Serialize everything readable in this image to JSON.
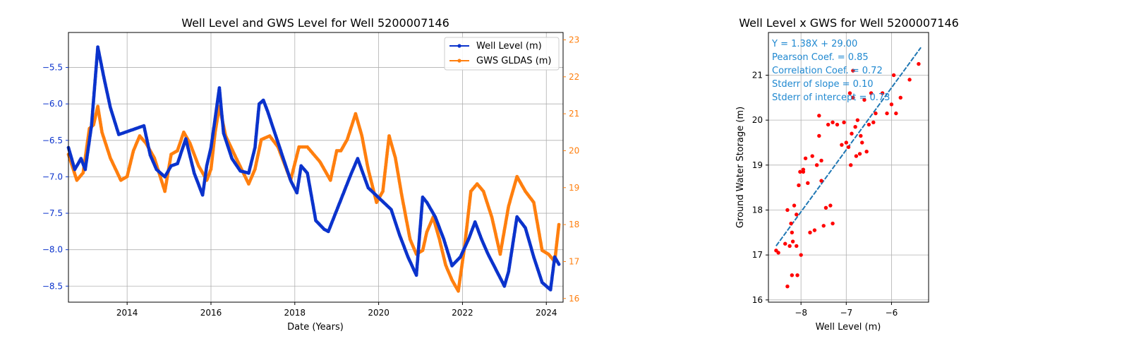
{
  "colors": {
    "well": "#0b33cc",
    "gws": "#ff7f0e",
    "scatter": "#ff0000",
    "fit": "#1f77b4",
    "stats_text": "#1f88d0",
    "grid": "#b0b0b0"
  },
  "chart_data": [
    {
      "type": "line",
      "title": "Well Level and GWS Level for Well 5200007146",
      "xlabel": "Date (Years)",
      "ylabel": "",
      "y2label": "",
      "xlim": [
        2012.6,
        2024.4
      ],
      "ylim": [
        -8.72,
        -5.02
      ],
      "y2lim": [
        15.9,
        23.2
      ],
      "x_ticks": [
        2014,
        2016,
        2018,
        2020,
        2022,
        2024
      ],
      "y_ticks": [
        -8.5,
        -8.0,
        -7.5,
        -7.0,
        -6.5,
        -6.0,
        -5.5
      ],
      "y2_ticks": [
        16,
        17,
        18,
        19,
        20,
        21,
        22,
        23
      ],
      "grid": true,
      "legend": "top-right",
      "series": [
        {
          "name": "Well Level (m)",
          "axis": "left",
          "marker": "dot",
          "x": [
            2012.6,
            2012.75,
            2012.9,
            2013.0,
            2013.15,
            2013.3,
            2013.45,
            2013.6,
            2013.8,
            2014.4,
            2014.55,
            2014.7,
            2014.9,
            2015.05,
            2015.2,
            2015.4,
            2015.6,
            2015.8,
            2015.9,
            2016.0,
            2016.1,
            2016.2,
            2016.3,
            2016.5,
            2016.7,
            2016.9,
            2017.05,
            2017.15,
            2017.25,
            2017.35,
            2017.9,
            2018.05,
            2018.15,
            2018.3,
            2018.5,
            2018.7,
            2018.8,
            2019.35,
            2019.5,
            2019.75,
            2020.3,
            2020.5,
            2020.7,
            2020.9,
            2021.05,
            2021.15,
            2021.35,
            2021.55,
            2021.75,
            2021.95,
            2022.15,
            2022.3,
            2022.45,
            2022.6,
            2023.0,
            2023.1,
            2023.3,
            2023.5,
            2023.7,
            2023.9,
            2024.0,
            2024.1,
            2024.2,
            2024.3
          ],
          "y": [
            -6.6,
            -6.9,
            -6.75,
            -6.9,
            -6.3,
            -5.22,
            -5.65,
            -6.05,
            -6.42,
            -6.3,
            -6.7,
            -6.9,
            -7.0,
            -6.85,
            -6.82,
            -6.48,
            -6.95,
            -7.25,
            -6.85,
            -6.6,
            -6.2,
            -5.78,
            -6.4,
            -6.75,
            -6.92,
            -6.95,
            -6.6,
            -6.0,
            -5.95,
            -6.1,
            -7.05,
            -7.22,
            -6.85,
            -6.95,
            -7.6,
            -7.72,
            -7.75,
            -6.95,
            -6.75,
            -7.15,
            -7.45,
            -7.8,
            -8.1,
            -8.35,
            -7.28,
            -7.35,
            -7.55,
            -7.85,
            -8.22,
            -8.1,
            -7.85,
            -7.62,
            -7.85,
            -8.05,
            -8.5,
            -8.3,
            -7.55,
            -7.7,
            -8.1,
            -8.45,
            -8.5,
            -8.55,
            -8.1,
            -8.2
          ]
        },
        {
          "name": "GWS GLDAS (m)",
          "axis": "right",
          "marker": "dot",
          "x": [
            2012.6,
            2012.8,
            2012.95,
            2013.1,
            2013.2,
            2013.3,
            2013.4,
            2013.6,
            2013.85,
            2014.0,
            2014.15,
            2014.3,
            2014.45,
            2014.65,
            2014.9,
            2015.05,
            2015.2,
            2015.35,
            2015.5,
            2015.7,
            2015.9,
            2016.0,
            2016.1,
            2016.2,
            2016.35,
            2016.6,
            2016.9,
            2017.05,
            2017.2,
            2017.4,
            2017.6,
            2017.9,
            2018.1,
            2018.3,
            2018.6,
            2018.85,
            2019.0,
            2019.1,
            2019.25,
            2019.45,
            2019.6,
            2019.75,
            2019.95,
            2020.1,
            2020.25,
            2020.4,
            2020.55,
            2020.75,
            2020.9,
            2021.05,
            2021.15,
            2021.3,
            2021.45,
            2021.6,
            2021.75,
            2021.9,
            2022.05,
            2022.2,
            2022.35,
            2022.5,
            2022.7,
            2022.9,
            2023.1,
            2023.3,
            2023.5,
            2023.7,
            2023.9,
            2024.05,
            2024.2,
            2024.3
          ],
          "y": [
            19.9,
            19.2,
            19.4,
            20.6,
            20.7,
            21.2,
            20.5,
            19.8,
            19.2,
            19.3,
            20.0,
            20.4,
            20.2,
            19.8,
            18.9,
            19.9,
            20.0,
            20.5,
            20.2,
            19.6,
            19.2,
            19.5,
            20.5,
            21.2,
            20.4,
            19.8,
            19.1,
            19.5,
            20.3,
            20.4,
            20.1,
            19.2,
            20.1,
            20.1,
            19.7,
            19.2,
            20.0,
            20.0,
            20.3,
            21.0,
            20.4,
            19.5,
            18.6,
            18.9,
            20.4,
            19.8,
            18.8,
            17.6,
            17.2,
            17.3,
            17.8,
            18.2,
            17.6,
            16.9,
            16.5,
            16.2,
            17.4,
            18.9,
            19.1,
            18.9,
            18.2,
            17.2,
            18.5,
            19.3,
            18.9,
            18.6,
            17.3,
            17.2,
            17.0,
            18.0
          ]
        }
      ]
    },
    {
      "type": "scatter",
      "title": "Well Level x GWS for Well 5200007146",
      "xlabel": "Well Level (m)",
      "ylabel": "Ground Water Storage (m)",
      "xlim": [
        -8.72,
        -5.18
      ],
      "ylim": [
        15.95,
        21.95
      ],
      "x_ticks": [
        -8,
        -7,
        -6
      ],
      "y_ticks": [
        16,
        17,
        18,
        19,
        20,
        21
      ],
      "grid": true,
      "annotations": [
        "Y = 1.38X + 29.00",
        "Pearson Coef. = 0.85",
        "Correlation Coef. = 0.72",
        "Stderr of slope = 0.10",
        "Stderr of intercept = 0.73"
      ],
      "fit": {
        "slope": 1.38,
        "intercept": 29.0,
        "x_range": [
          -8.55,
          -5.35
        ]
      },
      "points": {
        "x": [
          -8.55,
          -8.5,
          -8.35,
          -8.3,
          -8.25,
          -8.22,
          -8.2,
          -8.18,
          -8.15,
          -8.1,
          -8.08,
          -8.05,
          -8.02,
          -8.0,
          -7.95,
          -7.9,
          -7.85,
          -7.8,
          -7.75,
          -7.7,
          -7.65,
          -7.6,
          -7.55,
          -7.5,
          -7.45,
          -7.4,
          -7.35,
          -7.3,
          -7.2,
          -7.1,
          -7.05,
          -7.0,
          -6.95,
          -6.9,
          -6.88,
          -6.85,
          -6.8,
          -6.78,
          -6.75,
          -6.7,
          -6.68,
          -6.65,
          -6.6,
          -6.55,
          -6.5,
          -6.45,
          -6.4,
          -6.35,
          -6.2,
          -6.1,
          -6.0,
          -5.95,
          -5.9,
          -5.8,
          -5.6,
          -5.4,
          -8.3,
          -8.2,
          -8.1,
          -7.95,
          -7.6,
          -7.55,
          -7.3,
          -6.92,
          -6.85
        ],
        "y": [
          17.1,
          17.05,
          17.25,
          16.3,
          17.2,
          17.7,
          17.5,
          17.3,
          18.1,
          17.2,
          16.55,
          18.55,
          18.85,
          17.0,
          18.9,
          19.15,
          18.6,
          17.5,
          19.2,
          17.55,
          19.0,
          20.1,
          18.65,
          17.65,
          18.05,
          19.9,
          18.1,
          17.7,
          19.9,
          19.45,
          19.95,
          19.5,
          19.4,
          19.0,
          19.7,
          20.5,
          19.85,
          19.2,
          20.0,
          19.25,
          19.65,
          19.5,
          20.45,
          19.3,
          19.9,
          20.6,
          19.95,
          20.15,
          20.6,
          20.15,
          20.35,
          21.0,
          20.15,
          20.5,
          20.9,
          21.25,
          18.0,
          16.55,
          17.9,
          18.85,
          19.65,
          19.1,
          19.95,
          20.6,
          21.1
        ]
      }
    }
  ]
}
